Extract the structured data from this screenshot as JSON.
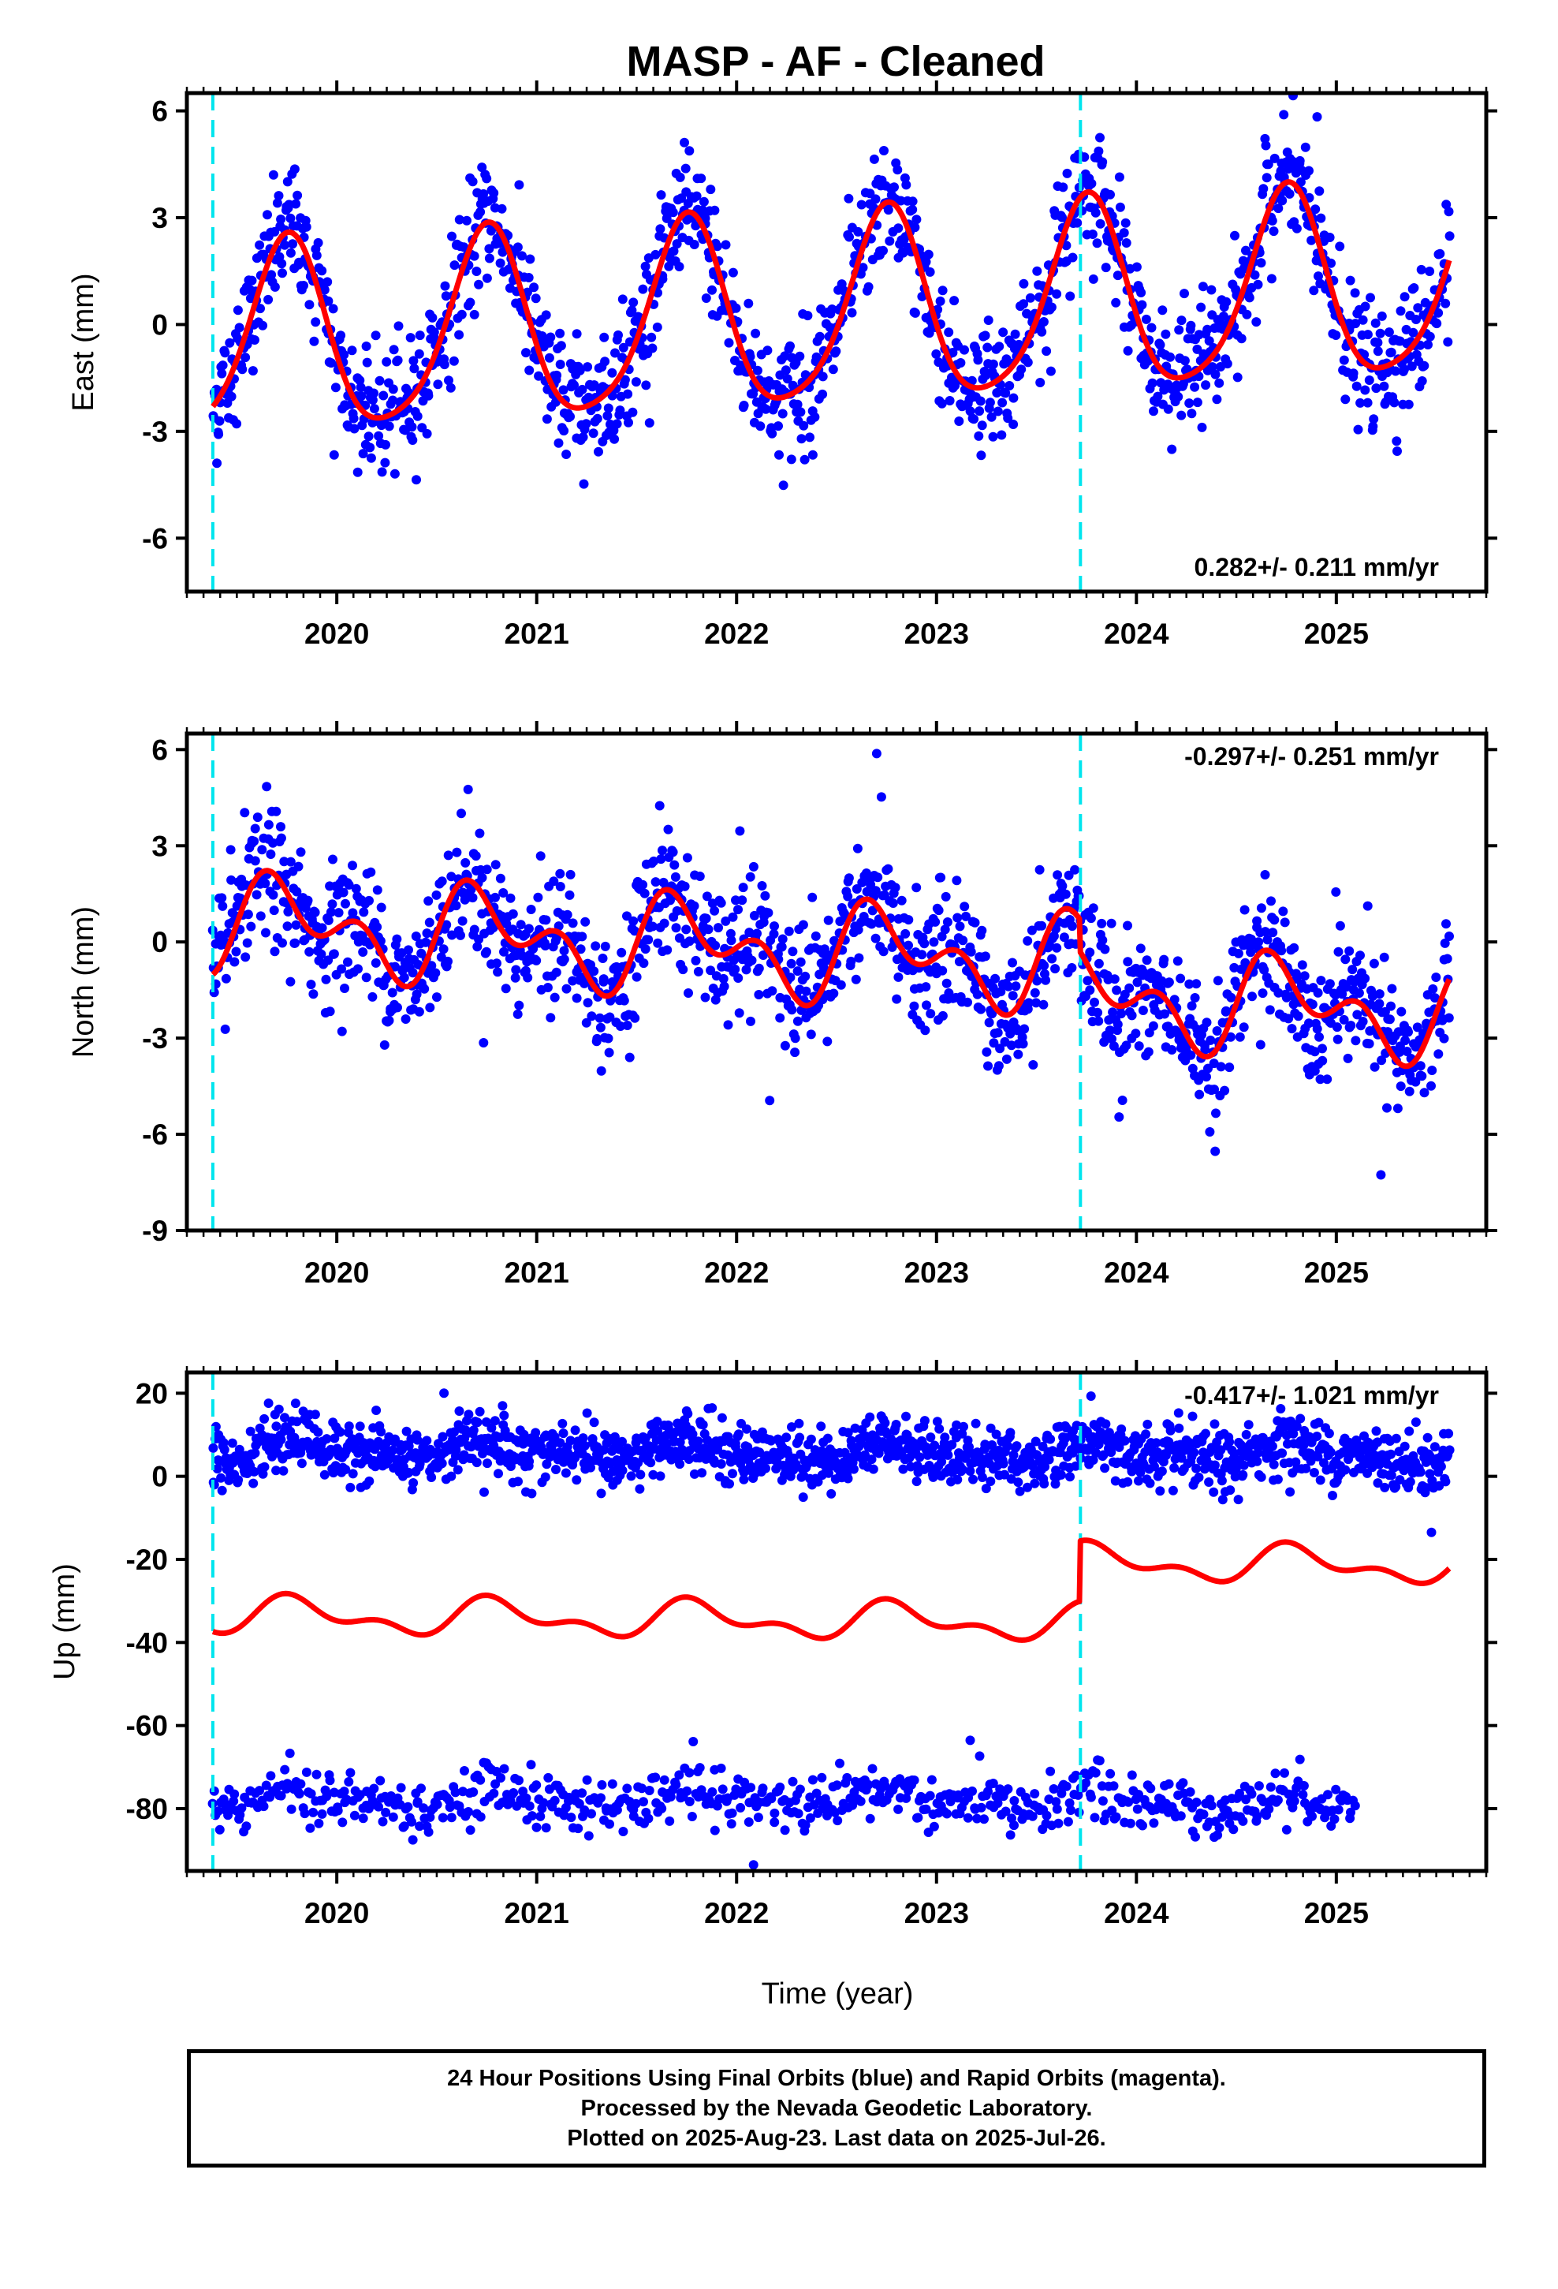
{
  "title": "MASP  - AF - Cleaned",
  "colors": {
    "points": "#0000ff",
    "fit": "#ff0000",
    "vline": "#00e5ee",
    "frame": "#000000"
  },
  "chart_data": [
    {
      "type": "scatter",
      "panel": "east",
      "ylabel": "East (mm)",
      "xlabel": "",
      "xlim": [
        2019.25,
        2025.75
      ],
      "ylim": [
        -7.5,
        6.5
      ],
      "yticks": [
        6,
        3,
        0,
        -3,
        -6
      ],
      "xticks": [
        2020,
        2021,
        2022,
        2023,
        2024,
        2025
      ],
      "grid": false,
      "rate_label": "0.282+/- 0.211 mm/yr",
      "rate_position": "bottom-right",
      "vlines": [
        2019.38,
        2023.72
      ],
      "fit": {
        "base": -0.6,
        "rate": 0.282,
        "amp1": 2.65,
        "phase1": 0.5,
        "amp2": 0.45,
        "phase2": 0.15,
        "offset_at": 2023.72,
        "offset": 0.0
      },
      "scatter_segments": [
        {
          "x_start": 2019.38,
          "x_end": 2025.57,
          "spacing": 0.0042,
          "scatter": 0.85,
          "offset": 0
        }
      ],
      "series": [
        {
          "name": "",
          "role": "daily positions (final orbits)"
        },
        {
          "name": "",
          "role": "model fit"
        }
      ]
    },
    {
      "type": "scatter",
      "panel": "north",
      "ylabel": "North (mm)",
      "xlabel": "",
      "xlim": [
        2019.25,
        2025.75
      ],
      "ylim": [
        -9,
        6.5
      ],
      "yticks": [
        6,
        3,
        0,
        -3,
        -6,
        -9
      ],
      "xticks": [
        2020,
        2021,
        2022,
        2023,
        2024,
        2025
      ],
      "grid": false,
      "rate_label": "-0.297+/- 0.251 mm/yr",
      "rate_position": "top-right",
      "vlines": [
        2019.38,
        2023.72
      ],
      "fit": {
        "base": 0.6,
        "rate": -0.297,
        "amp1": 1.05,
        "phase1": 0.5,
        "amp2": 0.9,
        "phase2": 0.0,
        "offset_at": 2023.72,
        "offset": -1.0
      },
      "scatter_segments": [
        {
          "x_start": 2019.38,
          "x_end": 2025.57,
          "spacing": 0.0042,
          "scatter": 1.0,
          "offset": 0
        }
      ],
      "series": [
        {
          "name": "",
          "role": "daily positions (final orbits)"
        },
        {
          "name": "",
          "role": "model fit"
        }
      ]
    },
    {
      "type": "scatter",
      "panel": "up",
      "ylabel": "Up (mm)",
      "xlabel": "Time (year)",
      "xlim": [
        2019.25,
        2025.75
      ],
      "ylim": [
        -95,
        25
      ],
      "yticks": [
        20,
        0,
        -20,
        -40,
        -60,
        -80
      ],
      "xticks": [
        2020,
        2021,
        2022,
        2023,
        2024,
        2025
      ],
      "grid": false,
      "rate_label": "-0.417+/- 1.021 mm/yr",
      "rate_position": "top-right",
      "vlines": [
        2019.38,
        2023.72
      ],
      "fit": {
        "base": -33.5,
        "rate": -0.417,
        "amp1": 3.5,
        "phase1": 0.55,
        "amp2": 2.2,
        "phase2": 0.1,
        "offset_at": 2023.72,
        "offset": 14.5
      },
      "scatter_segments": [
        {
          "x_start": 2019.38,
          "x_end": 2025.57,
          "spacing": 0.0042,
          "scatter": 3.6,
          "offset": 6.5
        },
        {
          "x_start": 2019.38,
          "x_end": 2025.1,
          "spacing": 0.0085,
          "scatter": 3.2,
          "offset": -77.5
        }
      ],
      "series": [
        {
          "name": "",
          "role": "daily positions (final orbits)"
        },
        {
          "name": "",
          "role": "model fit"
        }
      ]
    }
  ],
  "footer": {
    "line1": "24 Hour Positions Using Final Orbits (blue) and Rapid Orbits (magenta).",
    "line2": "Processed by the Nevada Geodetic Laboratory.",
    "line3": "Plotted on 2025-Aug-23. Last data on 2025-Jul-26."
  }
}
